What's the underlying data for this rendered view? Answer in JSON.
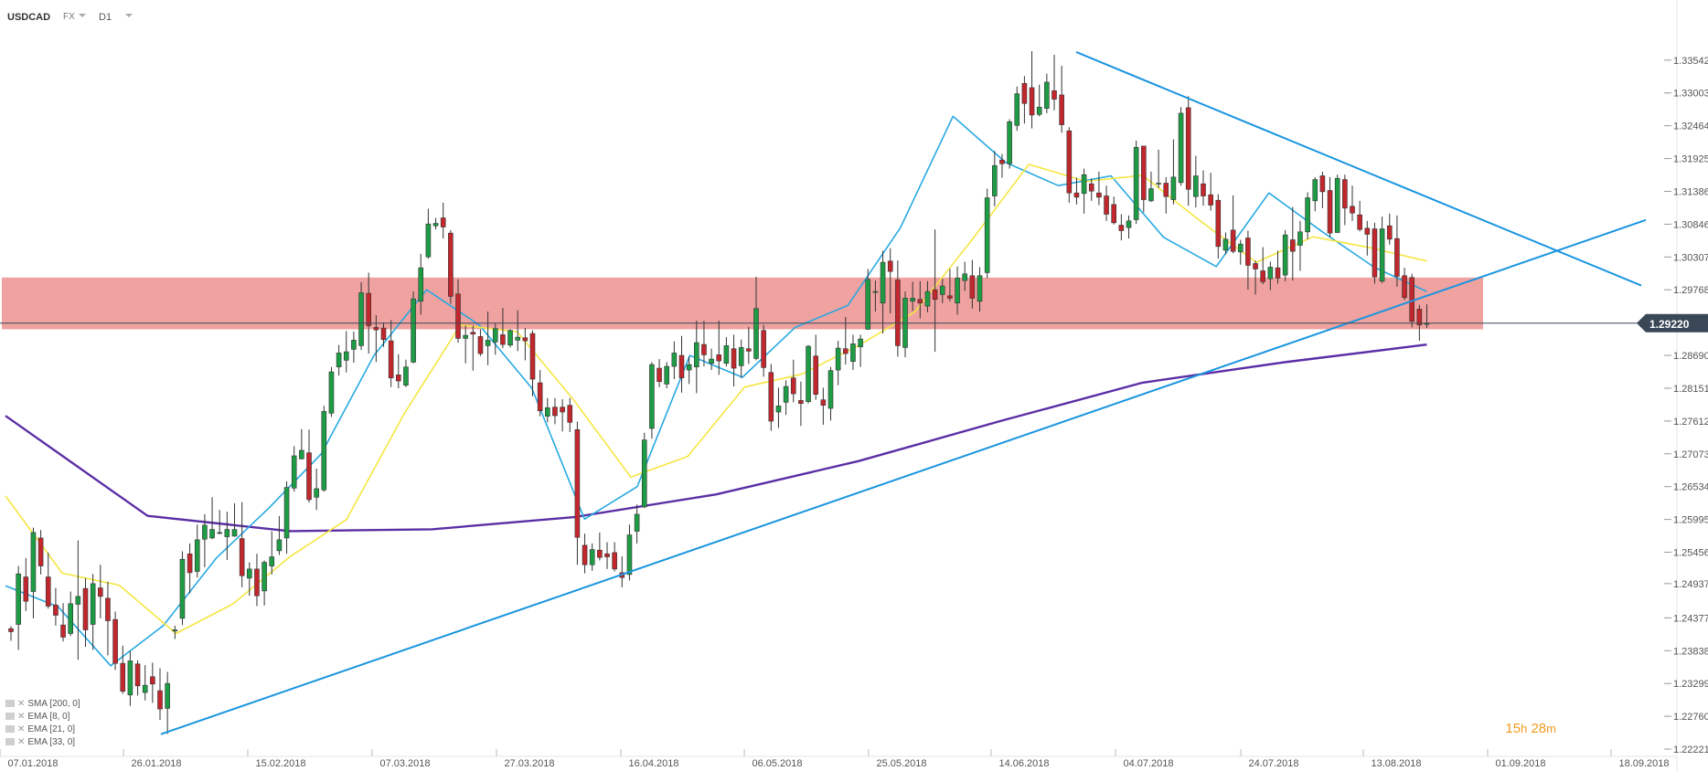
{
  "header": {
    "symbol": "USDCAD",
    "type": "FX",
    "timeframe": "D1"
  },
  "legend": [
    {
      "label": "SMA [200, 0]"
    },
    {
      "label": "EMA [8, 0]"
    },
    {
      "label": "EMA [21, 0]"
    },
    {
      "label": "EMA [33, 0]"
    }
  ],
  "timer": {
    "h": "15",
    "h_unit": "h",
    "m": "28",
    "m_unit": "m"
  },
  "colors": {
    "bull": "#1e9c45",
    "bear": "#c1272d",
    "zone": "#ee9d9b",
    "trendline": "#1a95e0",
    "sma200": "#5b2ea5",
    "ema8": "#27a9e1",
    "ema21": "#f5e642",
    "price_tag": "#3a4756",
    "axis_text": "#555555"
  },
  "chart_data": {
    "type": "candlestick",
    "symbol": "USDCAD",
    "timeframe": "D1",
    "ylim": [
      1.22221,
      1.3408
    ],
    "y_ticks": [
      1.22221,
      1.2276,
      1.23299,
      1.23838,
      1.24377,
      1.2494,
      1.25456,
      1.25995,
      1.26534,
      1.27073,
      1.27612,
      1.28151,
      1.2869,
      1.29768,
      1.30307,
      1.30846,
      1.31386,
      1.31925,
      1.32464,
      1.33003,
      1.33542
    ],
    "y_tick_labels": [
      "1.22221",
      "1.22760",
      "1.23299",
      "1.23838",
      "1.24377",
      "1.24937",
      "1.25456",
      "1.25995",
      "1.26534",
      "1.27073",
      "1.27612",
      "1.28151",
      "1.28690",
      "1.29768",
      "1.30307",
      "1.30846",
      "1.31386",
      "1.31925",
      "1.32464",
      "1.33003",
      "1.33542"
    ],
    "x_dates": [
      "07.01.2018",
      "26.01.2018",
      "15.02.2018",
      "07.03.2018",
      "27.03.2018",
      "16.04.2018",
      "06.05.2018",
      "25.05.2018",
      "14.06.2018",
      "04.07.2018",
      "24.07.2018",
      "13.08.2018",
      "01.09.2018",
      "18.09.2018"
    ],
    "last_price": 1.2922,
    "last_price_label": "1.29220",
    "zone": [
      1.2912,
      1.2997
    ],
    "candles": [
      [
        1.242,
        1.2424,
        1.24,
        1.2415
      ],
      [
        1.2427,
        1.2523,
        1.2385,
        1.251
      ],
      [
        1.2505,
        1.2536,
        1.2449,
        1.2465
      ],
      [
        1.2481,
        1.2586,
        1.2437,
        1.2578
      ],
      [
        1.2569,
        1.2582,
        1.2509,
        1.2523
      ],
      [
        1.2505,
        1.2545,
        1.2453,
        1.2457
      ],
      [
        1.2459,
        1.2487,
        1.2425,
        1.2442
      ],
      [
        1.2426,
        1.2462,
        1.2399,
        1.2406
      ],
      [
        1.2412,
        1.2481,
        1.2408,
        1.2461
      ],
      [
        1.246,
        1.2565,
        1.2369,
        1.2473
      ],
      [
        1.2486,
        1.2503,
        1.239,
        1.2418
      ],
      [
        1.2427,
        1.251,
        1.2385,
        1.2494
      ],
      [
        1.2487,
        1.2525,
        1.2437,
        1.2473
      ],
      [
        1.247,
        1.2497,
        1.2376,
        1.2433
      ],
      [
        1.2435,
        1.2448,
        1.2352,
        1.2363
      ],
      [
        1.2363,
        1.2392,
        1.2313,
        1.2317
      ],
      [
        1.2311,
        1.2383,
        1.2293,
        1.2367
      ],
      [
        1.2362,
        1.2368,
        1.231,
        1.2326
      ],
      [
        1.2315,
        1.236,
        1.2302,
        1.2327
      ],
      [
        1.2341,
        1.2364,
        1.2298,
        1.2329
      ],
      [
        1.2318,
        1.2355,
        1.227,
        1.2288
      ],
      [
        1.2289,
        1.2349,
        1.2247,
        1.233
      ],
      [
        1.2416,
        1.2425,
        1.2403,
        1.2418
      ],
      [
        1.2437,
        1.2547,
        1.2426,
        1.2534
      ],
      [
        1.2543,
        1.256,
        1.2478,
        1.2512
      ],
      [
        1.2514,
        1.2591,
        1.2504,
        1.2566
      ],
      [
        1.2567,
        1.2608,
        1.2521,
        1.259
      ],
      [
        1.2569,
        1.2636,
        1.2567,
        1.2583
      ],
      [
        1.2577,
        1.2615,
        1.2575,
        1.2578
      ],
      [
        1.2571,
        1.2612,
        1.2533,
        1.2583
      ],
      [
        1.2572,
        1.2626,
        1.2571,
        1.2583
      ],
      [
        1.2568,
        1.2628,
        1.2488,
        1.2507
      ],
      [
        1.2503,
        1.2529,
        1.2474,
        1.2518
      ],
      [
        1.2518,
        1.2543,
        1.2457,
        1.2474
      ],
      [
        1.2482,
        1.2532,
        1.2458,
        1.2529
      ],
      [
        1.2523,
        1.258,
        1.2509,
        1.2538
      ],
      [
        1.2548,
        1.2605,
        1.2541,
        1.2566
      ],
      [
        1.2569,
        1.2662,
        1.2543,
        1.2652
      ],
      [
        1.2651,
        1.272,
        1.2645,
        1.2704
      ],
      [
        1.2699,
        1.2748,
        1.2698,
        1.2713
      ],
      [
        1.2709,
        1.2747,
        1.2627,
        1.2632
      ],
      [
        1.2636,
        1.2683,
        1.2615,
        1.265
      ],
      [
        1.2648,
        1.2786,
        1.2645,
        1.2777
      ],
      [
        1.2774,
        1.285,
        1.2768,
        1.2842
      ],
      [
        1.285,
        1.2886,
        1.2836,
        1.2873
      ],
      [
        1.2861,
        1.2909,
        1.2841,
        1.2875
      ],
      [
        1.2879,
        1.2908,
        1.2857,
        1.2894
      ],
      [
        1.2885,
        1.2989,
        1.2878,
        1.2972
      ],
      [
        1.2971,
        1.3005,
        1.2872,
        1.2918
      ],
      [
        1.2915,
        1.2935,
        1.2858,
        1.2911
      ],
      [
        1.2914,
        1.2923,
        1.2883,
        1.2895
      ],
      [
        1.2893,
        1.2927,
        1.2817,
        1.2832
      ],
      [
        1.2837,
        1.2871,
        1.2815,
        1.2827
      ],
      [
        1.282,
        1.2862,
        1.2817,
        1.285
      ],
      [
        1.2858,
        1.2974,
        1.2856,
        1.2962
      ],
      [
        1.2958,
        1.3036,
        1.2936,
        1.3013
      ],
      [
        1.3031,
        1.311,
        1.3028,
        1.3085
      ],
      [
        1.3082,
        1.3095,
        1.3076,
        1.3086
      ],
      [
        1.3095,
        1.312,
        1.3061,
        1.308
      ],
      [
        1.307,
        1.3075,
        1.2954,
        1.2966
      ],
      [
        1.297,
        1.2994,
        1.289,
        1.2897
      ],
      [
        1.2897,
        1.2918,
        1.2856,
        1.2902
      ],
      [
        1.2907,
        1.2918,
        1.2844,
        1.2904
      ],
      [
        1.29,
        1.2912,
        1.2868,
        1.2872
      ],
      [
        1.2885,
        1.2941,
        1.2853,
        1.2894
      ],
      [
        1.2891,
        1.2921,
        1.287,
        1.2913
      ],
      [
        1.2903,
        1.2947,
        1.2881,
        1.2887
      ],
      [
        1.2886,
        1.2912,
        1.2882,
        1.291
      ],
      [
        1.2894,
        1.2943,
        1.2876,
        1.2899
      ],
      [
        1.2898,
        1.2914,
        1.2861,
        1.2893
      ],
      [
        1.2905,
        1.291,
        1.2802,
        1.283
      ],
      [
        1.2824,
        1.2845,
        1.2769,
        1.2778
      ],
      [
        1.2769,
        1.2799,
        1.2759,
        1.2783
      ],
      [
        1.2784,
        1.2799,
        1.2756,
        1.277
      ],
      [
        1.2784,
        1.2797,
        1.2744,
        1.2776
      ],
      [
        1.2787,
        1.2799,
        1.2743,
        1.2759
      ],
      [
        1.2747,
        1.276,
        1.2525,
        1.257
      ],
      [
        1.2557,
        1.2576,
        1.2511,
        1.2525
      ],
      [
        1.2525,
        1.256,
        1.2515,
        1.255
      ],
      [
        1.2549,
        1.2578,
        1.2532,
        1.2537
      ],
      [
        1.2543,
        1.2562,
        1.2518,
        1.2538
      ],
      [
        1.2545,
        1.2562,
        1.2514,
        1.2518
      ],
      [
        1.2512,
        1.2539,
        1.2488,
        1.2504
      ],
      [
        1.2509,
        1.2591,
        1.2499,
        1.2574
      ],
      [
        1.258,
        1.2624,
        1.256,
        1.2608
      ],
      [
        1.262,
        1.2742,
        1.2618,
        1.273
      ],
      [
        1.2749,
        1.2858,
        1.2732,
        1.2854
      ],
      [
        1.2848,
        1.2863,
        1.2817,
        1.2826
      ],
      [
        1.2822,
        1.2858,
        1.2815,
        1.2851
      ],
      [
        1.2851,
        1.2892,
        1.283,
        1.2873
      ],
      [
        1.2869,
        1.2901,
        1.2808,
        1.2832
      ],
      [
        1.2845,
        1.2867,
        1.2822,
        1.2854
      ],
      [
        1.285,
        1.2926,
        1.2807,
        1.289
      ],
      [
        1.2887,
        1.2926,
        1.2851,
        1.287
      ],
      [
        1.2856,
        1.288,
        1.2845,
        1.2863
      ],
      [
        1.287,
        1.2926,
        1.2837,
        1.286
      ],
      [
        1.2856,
        1.2899,
        1.2851,
        1.2885
      ],
      [
        1.288,
        1.2903,
        1.2818,
        1.2848
      ],
      [
        1.2852,
        1.2895,
        1.2832,
        1.2882
      ],
      [
        1.288,
        1.2916,
        1.2855,
        1.2876
      ],
      [
        1.2864,
        1.2998,
        1.2861,
        1.2946
      ],
      [
        1.291,
        1.2919,
        1.2834,
        1.2849
      ],
      [
        1.2841,
        1.2855,
        1.2745,
        1.2761
      ],
      [
        1.2776,
        1.2816,
        1.275,
        1.2786
      ],
      [
        1.2792,
        1.2828,
        1.2771,
        1.2818
      ],
      [
        1.2832,
        1.2862,
        1.2792,
        1.2806
      ],
      [
        1.2795,
        1.2826,
        1.2753,
        1.279
      ],
      [
        1.2793,
        1.2886,
        1.279,
        1.2884
      ],
      [
        1.2868,
        1.2903,
        1.2796,
        1.2805
      ],
      [
        1.2796,
        1.2816,
        1.2755,
        1.2787
      ],
      [
        1.2782,
        1.285,
        1.2762,
        1.2844
      ],
      [
        1.2845,
        1.2893,
        1.282,
        1.2881
      ],
      [
        1.288,
        1.2932,
        1.2854,
        1.2872
      ],
      [
        1.2859,
        1.2903,
        1.2845,
        1.2888
      ],
      [
        1.2883,
        1.2903,
        1.285,
        1.2896
      ],
      [
        1.2912,
        1.3011,
        1.2911,
        1.2994
      ],
      [
        1.2974,
        1.2992,
        1.2941,
        1.2974
      ],
      [
        1.2955,
        1.3041,
        1.2905,
        1.3022
      ],
      [
        1.3024,
        1.3045,
        1.2938,
        1.3007
      ],
      [
        1.2993,
        1.3025,
        1.2867,
        1.2885
      ],
      [
        1.2882,
        1.2974,
        1.2866,
        1.2963
      ],
      [
        1.2958,
        1.299,
        1.2942,
        1.2963
      ],
      [
        1.2961,
        1.2991,
        1.293,
        1.2955
      ],
      [
        1.295,
        1.2991,
        1.294,
        1.2974
      ],
      [
        1.2977,
        1.3076,
        1.2875,
        1.2961
      ],
      [
        1.2969,
        1.2995,
        1.2955,
        1.2983
      ],
      [
        1.2967,
        1.3011,
        1.2958,
        1.2963
      ],
      [
        1.2955,
        1.3015,
        1.2936,
        1.2996
      ],
      [
        1.2992,
        1.3023,
        1.2975,
        1.3003
      ],
      [
        1.3,
        1.3026,
        1.2946,
        1.2963
      ],
      [
        1.2958,
        1.3014,
        1.2941,
        1.3
      ],
      [
        1.3005,
        1.3143,
        1.2996,
        1.3128
      ],
      [
        1.3131,
        1.3205,
        1.3114,
        1.3181
      ],
      [
        1.319,
        1.32,
        1.3161,
        1.3184
      ],
      [
        1.3184,
        1.3257,
        1.3176,
        1.3253
      ],
      [
        1.3247,
        1.3311,
        1.3238,
        1.3299
      ],
      [
        1.3316,
        1.3328,
        1.325,
        1.3283
      ],
      [
        1.3309,
        1.3369,
        1.3242,
        1.3264
      ],
      [
        1.3265,
        1.3314,
        1.3262,
        1.3277
      ],
      [
        1.3275,
        1.3332,
        1.3267,
        1.3318
      ],
      [
        1.3304,
        1.3363,
        1.3272,
        1.329
      ],
      [
        1.3297,
        1.3345,
        1.3235,
        1.3248
      ],
      [
        1.3238,
        1.3244,
        1.312,
        1.3136
      ],
      [
        1.3136,
        1.3161,
        1.3117,
        1.3129
      ],
      [
        1.3135,
        1.3176,
        1.3102,
        1.3166
      ],
      [
        1.3151,
        1.316,
        1.3123,
        1.3139
      ],
      [
        1.3136,
        1.3171,
        1.3116,
        1.3129
      ],
      [
        1.3131,
        1.3148,
        1.309,
        1.3101
      ],
      [
        1.3117,
        1.313,
        1.3084,
        1.3087
      ],
      [
        1.3083,
        1.3101,
        1.3058,
        1.3074
      ],
      [
        1.3079,
        1.3099,
        1.3061,
        1.309
      ],
      [
        1.3092,
        1.3222,
        1.3085,
        1.3211
      ],
      [
        1.3213,
        1.3213,
        1.3104,
        1.3125
      ],
      [
        1.3123,
        1.3171,
        1.3121,
        1.3143
      ],
      [
        1.3152,
        1.3207,
        1.3144,
        1.3152
      ],
      [
        1.3152,
        1.3162,
        1.3102,
        1.313
      ],
      [
        1.3125,
        1.3224,
        1.3117,
        1.3162
      ],
      [
        1.3153,
        1.3277,
        1.3148,
        1.3267
      ],
      [
        1.3276,
        1.3295,
        1.3115,
        1.3142
      ],
      [
        1.313,
        1.3197,
        1.3112,
        1.3164
      ],
      [
        1.3151,
        1.3173,
        1.3115,
        1.3131
      ],
      [
        1.3133,
        1.3169,
        1.3107,
        1.3116
      ],
      [
        1.3124,
        1.3134,
        1.3028,
        1.3048
      ],
      [
        1.3042,
        1.3071,
        1.3035,
        1.306
      ],
      [
        1.3075,
        1.3132,
        1.3037,
        1.304
      ],
      [
        1.3039,
        1.3059,
        1.3018,
        1.3052
      ],
      [
        1.3062,
        1.3074,
        1.2977,
        1.3017
      ],
      [
        1.302,
        1.3025,
        1.2969,
        1.3011
      ],
      [
        1.3008,
        1.3047,
        1.2986,
        1.299
      ],
      [
        1.2995,
        1.3023,
        1.2976,
        1.3014
      ],
      [
        1.3013,
        1.3041,
        1.2987,
        1.2996
      ],
      [
        1.3001,
        1.3075,
        1.2991,
        1.3067
      ],
      [
        1.3059,
        1.3113,
        1.2992,
        1.304
      ],
      [
        1.305,
        1.309,
        1.3008,
        1.3072
      ],
      [
        1.3072,
        1.3137,
        1.306,
        1.3128
      ],
      [
        1.3123,
        1.3162,
        1.3106,
        1.3158
      ],
      [
        1.3164,
        1.3171,
        1.3111,
        1.3138
      ],
      [
        1.314,
        1.3162,
        1.3063,
        1.307
      ],
      [
        1.3071,
        1.3166,
        1.307,
        1.316
      ],
      [
        1.3158,
        1.3166,
        1.3083,
        1.3111
      ],
      [
        1.3114,
        1.3148,
        1.309,
        1.3103
      ],
      [
        1.31,
        1.3123,
        1.3073,
        1.3076
      ],
      [
        1.3078,
        1.309,
        1.3033,
        1.3068
      ],
      [
        1.3077,
        1.3087,
        1.2987,
        1.2998
      ],
      [
        1.2991,
        1.3097,
        1.2988,
        1.3077
      ],
      [
        1.3082,
        1.3102,
        1.3051,
        1.306
      ],
      [
        1.3061,
        1.3099,
        1.2982,
        1.2999
      ],
      [
        1.3,
        1.3013,
        1.296,
        1.2964
      ],
      [
        1.2997,
        1.3003,
        1.2915,
        1.2925
      ],
      [
        1.2945,
        1.2952,
        1.2893,
        1.2919
      ],
      [
        1.292,
        1.2953,
        1.2914,
        1.2922
      ]
    ],
    "trendline_up": [
      [
        1.22466,
        1.30915
      ]
    ],
    "trendline_down": [
      [
        1.33675,
        1.29838
      ]
    ],
    "ma_series": [
      {
        "name": "SMA [200, 0]",
        "values": [
          1.27697,
          1.26054,
          1.25803,
          1.25833,
          1.26033,
          1.26406,
          1.26952,
          1.27612,
          1.28242,
          1.28578,
          1.28868
        ]
      },
      {
        "name": "EMA [8, 0]",
        "values": [
          1.24904,
          1.2456,
          1.2359,
          1.2425,
          1.25356,
          1.2618,
          1.27073,
          1.2869,
          1.29768,
          1.2919,
          1.28151,
          1.26,
          1.26534,
          1.2869,
          1.2833,
          1.2915,
          1.2951,
          1.3079,
          1.3262,
          1.3186,
          1.3148,
          1.3164,
          1.3063,
          1.3015,
          1.3136,
          1.3073,
          1.3014,
          1.2974
        ]
      },
      {
        "name": "EMA [21, 0]",
        "values": [
          1.2638,
          1.2511,
          1.24914,
          1.2412,
          1.24606,
          1.2538,
          1.25995,
          1.27712,
          1.2919,
          1.2908,
          1.2795,
          1.2669,
          1.2703,
          1.2817,
          1.2838,
          1.2885,
          1.2941,
          1.3059,
          1.3183,
          1.3155,
          1.3165,
          1.3091,
          1.3022,
          1.3064,
          1.3046,
          1.3024
        ]
      }
    ]
  }
}
